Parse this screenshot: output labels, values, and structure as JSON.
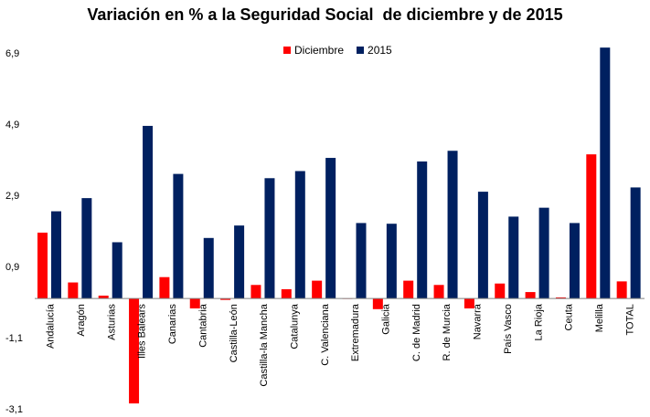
{
  "chart_data": {
    "type": "bar",
    "title": "Variación en % a la Seguridad Social  de diciembre y de 2015",
    "categories": [
      "Andalucía",
      "Aragón",
      "Asturias",
      "Illes Balears",
      "Canarias",
      "Cantabria",
      "Castilla-León",
      "Castilla-la Mancha",
      "Catalunya",
      "C. Valenciana",
      "Extremadura",
      "Galicia",
      "C. de Madrid",
      "R. de Murcia",
      "Navarra",
      "País Vasco",
      "La Rioja",
      "Ceuta",
      "Melilla",
      "TOTAL"
    ],
    "series": [
      {
        "name": "Diciembre",
        "color": "#ff0000",
        "values": [
          1.85,
          0.45,
          0.08,
          -2.95,
          0.6,
          -0.28,
          -0.04,
          0.38,
          0.26,
          0.5,
          0.0,
          -0.3,
          0.5,
          0.38,
          -0.28,
          0.42,
          0.18,
          0.03,
          4.05,
          0.48
        ]
      },
      {
        "name": "2015",
        "color": "#002060",
        "values": [
          2.45,
          2.82,
          1.58,
          4.85,
          3.5,
          1.7,
          2.05,
          3.38,
          3.58,
          3.95,
          2.12,
          2.1,
          3.85,
          4.15,
          3.0,
          2.3,
          2.55,
          2.12,
          7.05,
          3.12
        ]
      }
    ],
    "yticks": [
      "6,9",
      "4,9",
      "2,9",
      "0,9",
      "-1,1",
      "-3,1"
    ],
    "ytick_values": [
      6.9,
      4.9,
      2.9,
      0.9,
      -1.1,
      -3.1
    ],
    "ylim": [
      -3.1,
      7.1
    ],
    "xlabel": "",
    "ylabel": "",
    "legend_position": "top-center",
    "grid": false
  }
}
